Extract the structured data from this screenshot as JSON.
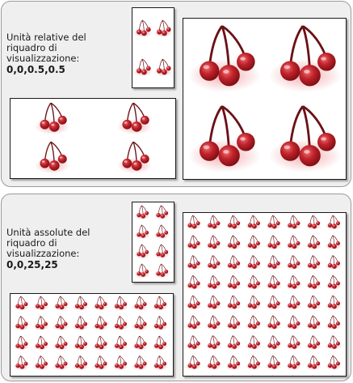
{
  "panels": [
    {
      "label_text": "Unità relative del riquadro di visualizzazione:",
      "value_text": "0,0,0.5,0.5",
      "icon": "cherry-icon"
    },
    {
      "label_text": "Unità assolute del riquadro di visualizzazione:",
      "value_text": "0,0,25,25",
      "icon": "cherry-icon"
    }
  ],
  "colors": {
    "panel_bg": "#efefef",
    "panel_border": "#9a9a9a",
    "cherry_red": "#b01c24",
    "stem": "#6b1116"
  }
}
